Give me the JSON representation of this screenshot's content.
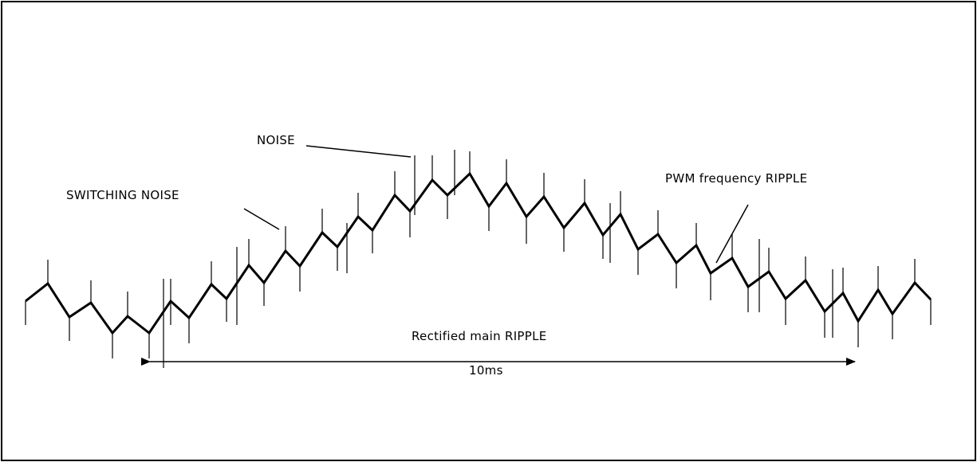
{
  "diagram": {
    "labels": {
      "noise": "NOISE",
      "switching_noise": "SWITCHING NOISE",
      "pwm_ripple": "PWM frequency RIPPLE",
      "rectified_ripple": "Rectified main RIPPLE",
      "period": "10ms"
    },
    "colors": {
      "line": "#000000",
      "background": "#ffffff"
    }
  }
}
